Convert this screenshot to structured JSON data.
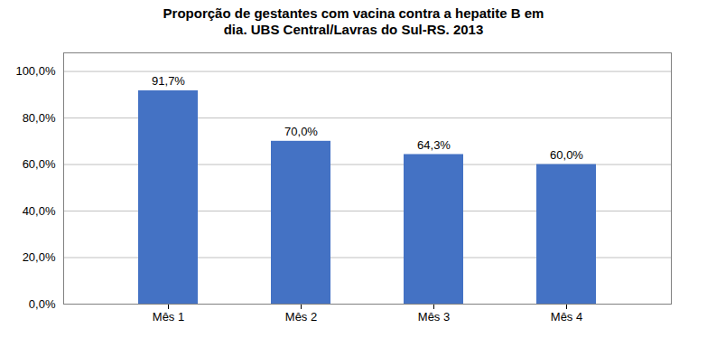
{
  "chart_data": {
    "type": "bar",
    "title": "Proporção de gestantes com vacina contra a hepatite B em\ndia. UBS Central/Lavras do Sul-RS. 2013",
    "categories": [
      "Mês 1",
      "Mês 2",
      "Mês 3",
      "Mês 4"
    ],
    "values": [
      91.7,
      70.0,
      64.3,
      60.0
    ],
    "value_labels": [
      "91,7%",
      "70,0%",
      "64,3%",
      "60,0%"
    ],
    "data_labels": true,
    "color": "#4472C4",
    "ylim": [
      0,
      108
    ],
    "yticks": [
      {
        "value": 0,
        "label": "0,0%"
      },
      {
        "value": 20,
        "label": "20,0%"
      },
      {
        "value": 40,
        "label": "40,0%"
      },
      {
        "value": 60,
        "label": "60,0%"
      },
      {
        "value": 80,
        "label": "80,0%"
      },
      {
        "value": 100,
        "label": "100,0%"
      }
    ],
    "grid": true
  }
}
